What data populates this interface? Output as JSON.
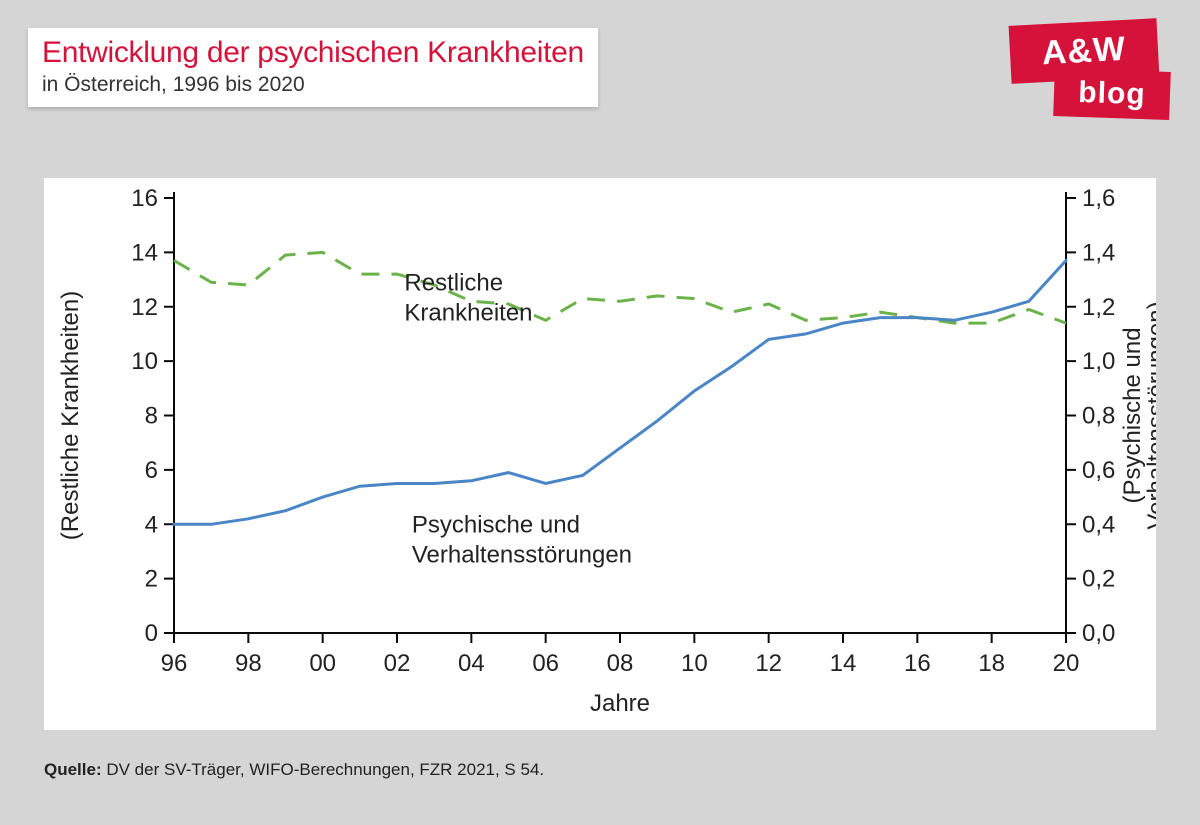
{
  "header": {
    "title": "Entwicklung der psychischen Krankheiten",
    "subtitle": "in Österreich, 1996 bis 2020"
  },
  "logo": {
    "line1": "A&W",
    "line2": "blog",
    "color": "#d5123a",
    "text_color": "#ffffff"
  },
  "footer": {
    "label": "Quelle:",
    "text": " DV der SV-Träger, WIFO-Berechnungen, FZR 2021, S 54."
  },
  "chart": {
    "type": "line-dual-axis",
    "background_color": "#ffffff",
    "axis_color": "#0a0a0a",
    "axis_width": 2,
    "tick_font_size": 24,
    "label_font_size": 24,
    "annotation_font_size": 24,
    "x": {
      "label": "Jahre",
      "lim": [
        1996,
        2020
      ],
      "tick_values": [
        1996,
        1998,
        2000,
        2002,
        2004,
        2006,
        2008,
        2010,
        2012,
        2014,
        2016,
        2018,
        2020
      ],
      "tick_labels": [
        "96",
        "98",
        "00",
        "02",
        "04",
        "06",
        "08",
        "10",
        "12",
        "14",
        "16",
        "18",
        "20"
      ]
    },
    "y_left": {
      "label": "(Restliche Krankheiten)",
      "lim": [
        0,
        16
      ],
      "ticks": [
        0,
        2,
        4,
        6,
        8,
        10,
        12,
        14,
        16
      ]
    },
    "y_right": {
      "label": "(Psychische und Verhaltensstörungen)",
      "lim": [
        0.0,
        1.6
      ],
      "ticks": [
        "0,0",
        "0,2",
        "0,4",
        "0,6",
        "0,8",
        "1,0",
        "1,2",
        "1,4",
        "1,6"
      ],
      "tick_values": [
        0.0,
        0.2,
        0.4,
        0.6,
        0.8,
        1.0,
        1.2,
        1.4,
        1.6
      ]
    },
    "series": {
      "restliche": {
        "label_lines": [
          "Restliche",
          "Krankheiten"
        ],
        "color": "#6cb24a",
        "width": 3,
        "dash": "18,12",
        "axis": "left",
        "x": [
          1996,
          1997,
          1998,
          1999,
          2000,
          2001,
          2002,
          2003,
          2004,
          2005,
          2006,
          2007,
          2008,
          2009,
          2010,
          2011,
          2012,
          2013,
          2014,
          2015,
          2016,
          2017,
          2018,
          2019,
          2020
        ],
        "y": [
          13.7,
          12.9,
          12.8,
          13.9,
          14.0,
          13.2,
          13.2,
          12.8,
          12.2,
          12.1,
          11.5,
          12.3,
          12.2,
          12.4,
          12.3,
          11.8,
          12.1,
          11.5,
          11.6,
          11.8,
          11.6,
          11.4,
          11.4,
          11.9,
          11.4
        ]
      },
      "psychische": {
        "label_lines": [
          "Psychische und",
          "Verhaltensstörungen"
        ],
        "color": "#4a86c6",
        "width": 3,
        "dash": "",
        "axis": "right",
        "x": [
          1996,
          1997,
          1998,
          1999,
          2000,
          2001,
          2002,
          2003,
          2004,
          2005,
          2006,
          2007,
          2008,
          2009,
          2010,
          2011,
          2012,
          2013,
          2014,
          2015,
          2016,
          2017,
          2018,
          2019,
          2020
        ],
        "y": [
          0.4,
          0.4,
          0.42,
          0.45,
          0.5,
          0.54,
          0.55,
          0.55,
          0.56,
          0.59,
          0.55,
          0.58,
          0.68,
          0.78,
          0.89,
          0.98,
          1.08,
          1.1,
          1.14,
          1.16,
          1.16,
          1.15,
          1.18,
          1.22,
          1.37
        ]
      }
    },
    "annotations": {
      "restliche_pos": {
        "x": 2002.2,
        "y_left": 12.6
      },
      "psychische_pos": {
        "x": 2002.4,
        "y_left": 3.7
      }
    },
    "page_background": "#d5d5d5"
  }
}
